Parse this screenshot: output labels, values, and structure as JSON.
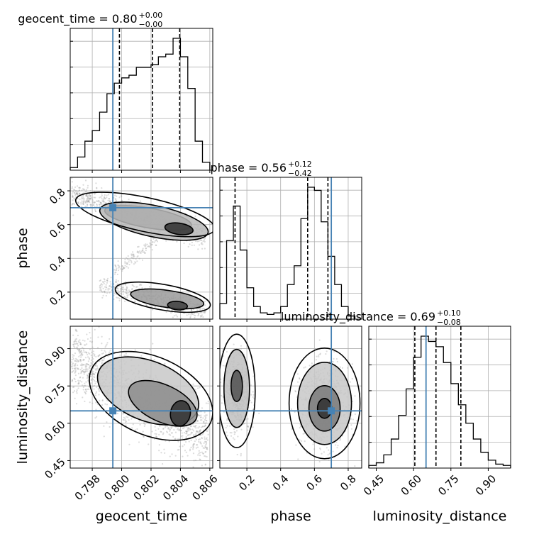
{
  "chart_data": {
    "type": "corner",
    "params": [
      "geocent_time",
      "phase",
      "luminosity_distance"
    ],
    "axis_labels": {
      "geocent_time": "geocent_time",
      "phase": "phase",
      "luminosity_distance": "luminosity_distance"
    },
    "ranges": {
      "geocent_time": [
        0.7965,
        0.8062
      ],
      "phase": [
        0.04,
        0.88
      ],
      "luminosity_distance": [
        0.42,
        0.99
      ]
    },
    "ticks": {
      "geocent_time": [
        0.798,
        0.8,
        0.802,
        0.804,
        0.806
      ],
      "phase": [
        0.2,
        0.4,
        0.6,
        0.8
      ],
      "luminosity_distance": [
        0.45,
        0.6,
        0.75,
        0.9
      ]
    },
    "tick_labels": {
      "geocent_time": [
        "0.798",
        "0.800",
        "0.802",
        "0.804",
        "0.806"
      ],
      "phase": [
        "0.2",
        "0.4",
        "0.6",
        "0.8"
      ],
      "luminosity_distance": [
        "0.45",
        "0.60",
        "0.75",
        "0.90"
      ]
    },
    "titles": [
      {
        "param": "geocent_time",
        "prefix": "geocent_time = 0.80",
        "plus": "+0.00",
        "minus": "−0.00"
      },
      {
        "param": "phase",
        "prefix": "phase = 0.56",
        "plus": "+0.12",
        "minus": "−0.42"
      },
      {
        "param": "luminosity_distance",
        "prefix": "luminosity_distance = 0.69",
        "plus": "+0.10",
        "minus": "−0.08"
      }
    ],
    "truths": {
      "geocent_time": 0.7994,
      "phase": 0.7,
      "luminosity_distance": 0.65
    },
    "quantiles": {
      "geocent_time": [
        0.79985,
        0.8021,
        0.80395
      ],
      "phase": [
        0.13,
        0.56,
        0.68
      ],
      "luminosity_distance": [
        0.605,
        0.69,
        0.79
      ]
    },
    "histograms": {
      "geocent_time": {
        "edges": [
          0.7965,
          0.80095,
          0.80545,
          0.8062
        ],
        "bin_edges": [
          0.7965,
          0.797,
          0.7975,
          0.798,
          0.7985,
          0.799,
          0.7995,
          0.8,
          0.8005,
          0.801,
          0.8015,
          0.802,
          0.8025,
          0.803,
          0.8035,
          0.804,
          0.8045,
          0.805,
          0.8055,
          0.806
        ],
        "counts": [
          0.02,
          0.1,
          0.22,
          0.3,
          0.44,
          0.58,
          0.66,
          0.7,
          0.72,
          0.78,
          0.78,
          0.8,
          0.86,
          0.88,
          1.0,
          0.86,
          0.62,
          0.22,
          0.06
        ]
      },
      "phase": {
        "bin_edges": [
          0.04,
          0.08,
          0.12,
          0.16,
          0.2,
          0.24,
          0.28,
          0.32,
          0.36,
          0.4,
          0.44,
          0.48,
          0.52,
          0.56,
          0.6,
          0.64,
          0.68,
          0.72,
          0.76,
          0.8,
          0.84
        ],
        "counts": [
          0.1,
          0.5,
          0.72,
          0.44,
          0.2,
          0.08,
          0.04,
          0.03,
          0.04,
          0.08,
          0.22,
          0.34,
          0.64,
          0.84,
          0.82,
          0.62,
          0.4,
          0.22,
          0.08,
          0.02
        ]
      },
      "luminosity_distance": {
        "bin_edges": [
          0.42,
          0.45,
          0.48,
          0.51,
          0.54,
          0.57,
          0.6,
          0.63,
          0.66,
          0.69,
          0.72,
          0.75,
          0.78,
          0.81,
          0.84,
          0.87,
          0.9,
          0.93,
          0.96,
          0.99
        ],
        "counts": [
          0.02,
          0.04,
          0.1,
          0.22,
          0.4,
          0.6,
          0.84,
          1.0,
          0.96,
          0.92,
          0.8,
          0.64,
          0.48,
          0.34,
          0.22,
          0.12,
          0.06,
          0.03,
          0.02
        ]
      }
    },
    "grid": true
  }
}
